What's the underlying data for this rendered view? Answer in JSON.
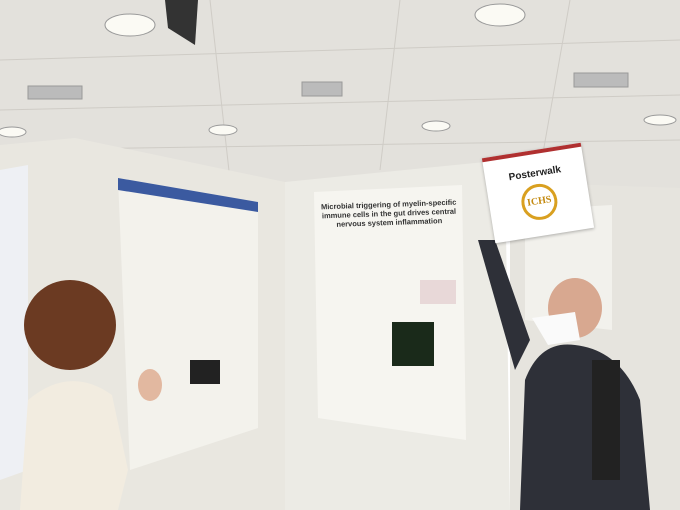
{
  "sign": {
    "title": "Posterwalk",
    "logo": "ICHS"
  },
  "poster": {
    "title": "Microbial triggering of myelin-specific immune cells in the gut drives central nervous system inflammation"
  }
}
